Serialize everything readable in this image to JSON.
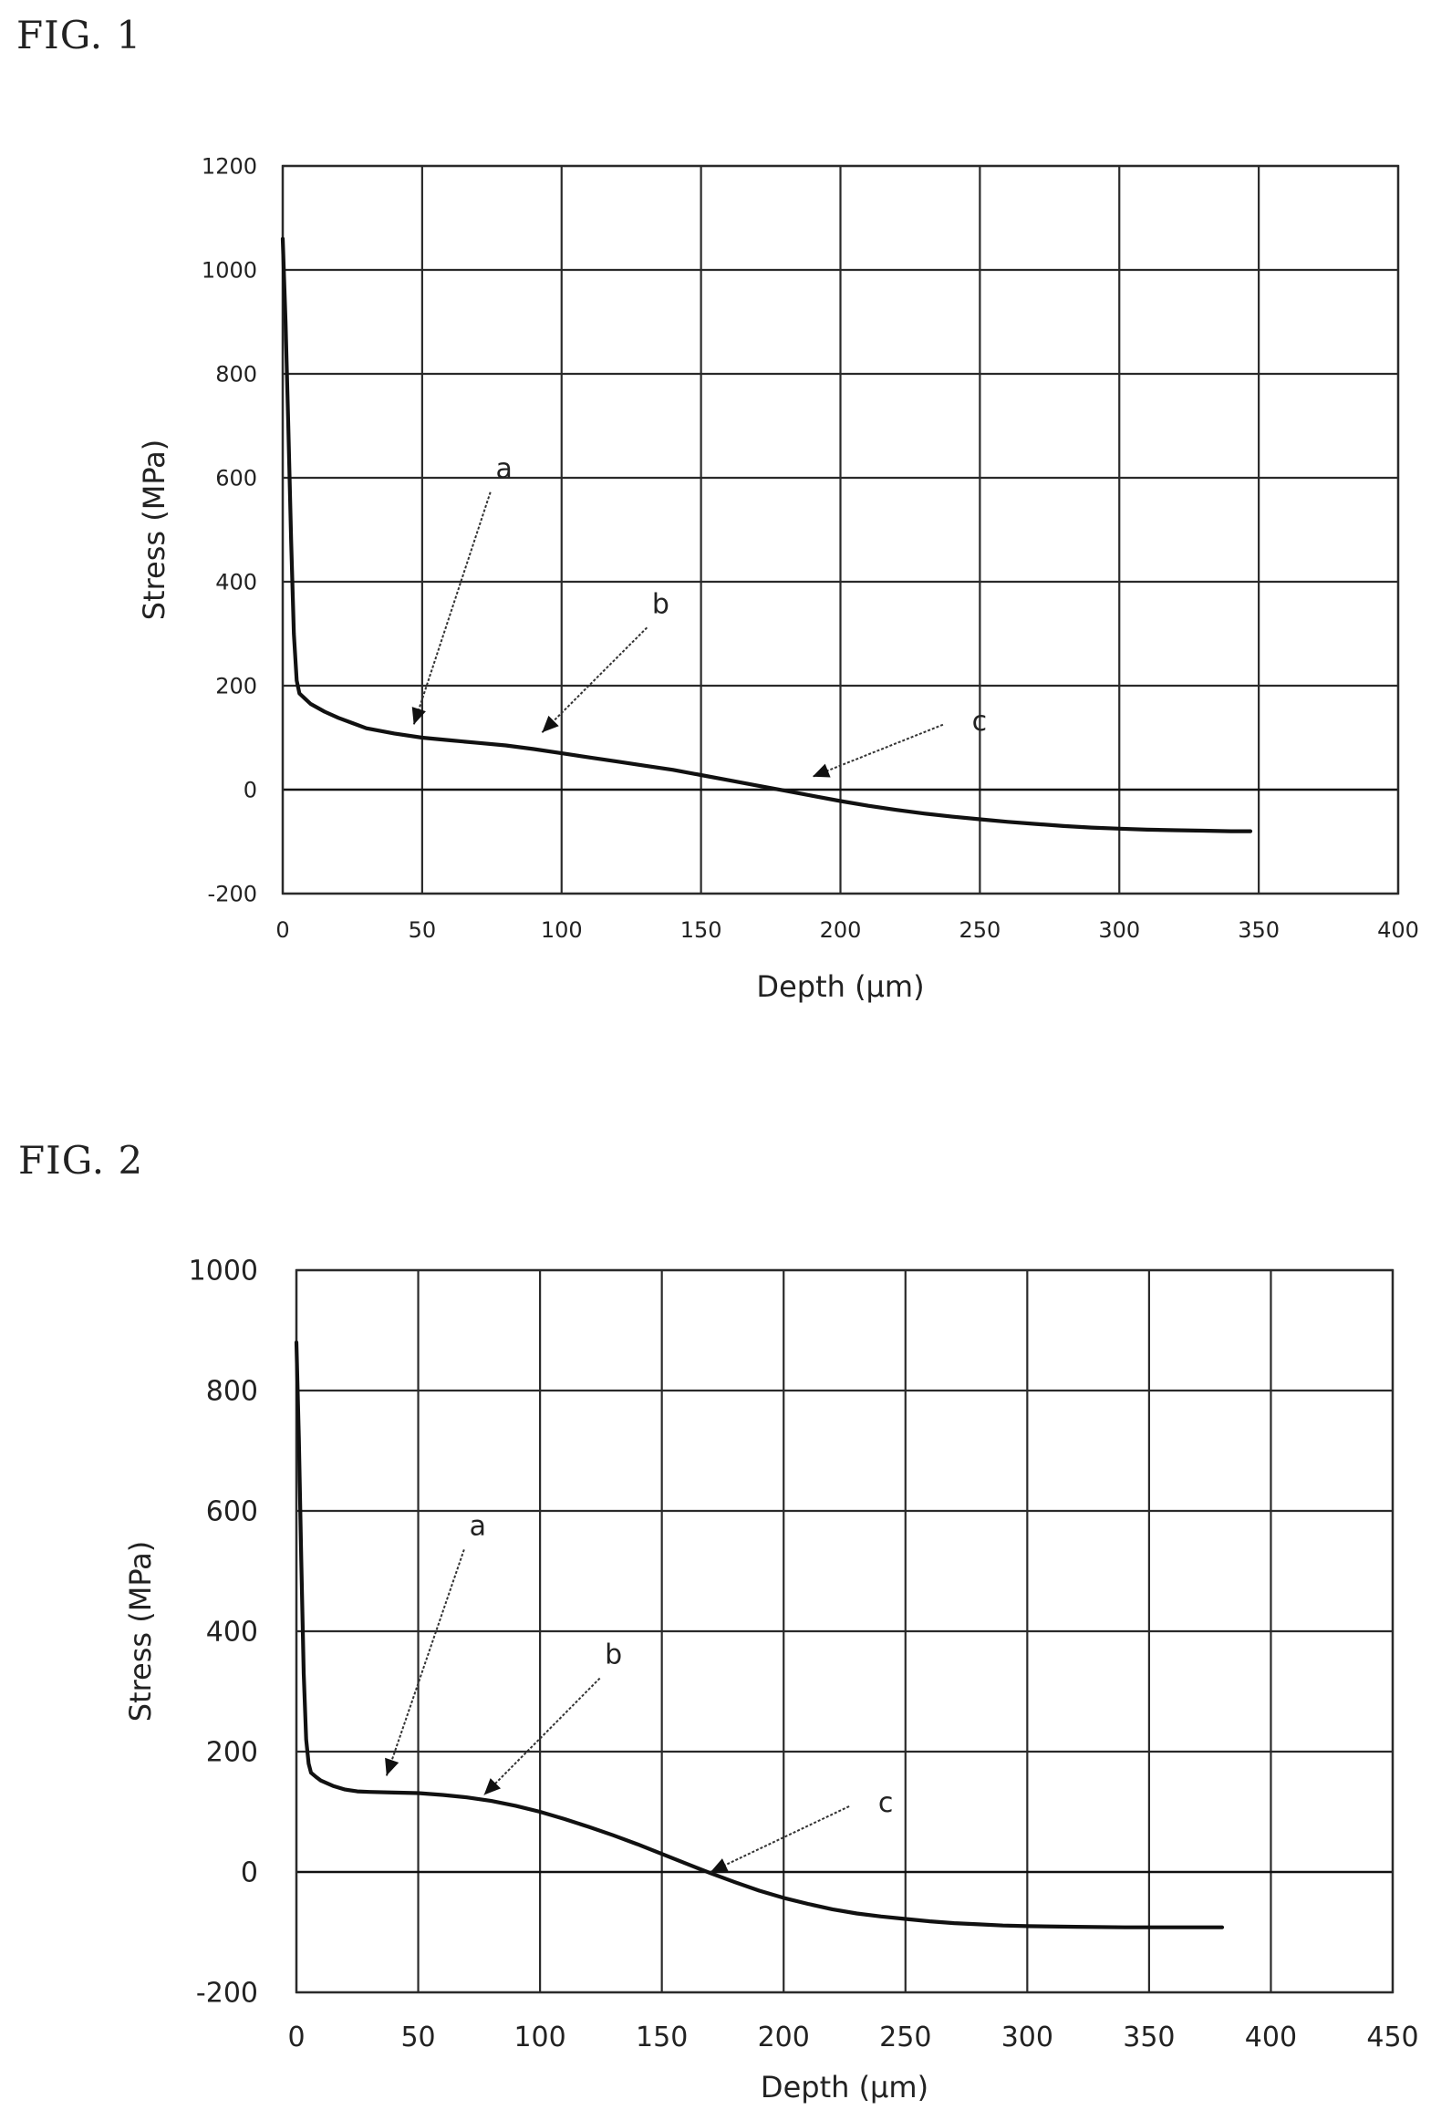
{
  "figures": [
    {
      "label": "FIG. 1"
    },
    {
      "label": "FIG. 2"
    }
  ],
  "chart_data": [
    {
      "type": "line",
      "title": "",
      "xlabel": "Depth (µm)",
      "ylabel": "Stress (MPa)",
      "xlim": [
        0,
        400
      ],
      "ylim": [
        -200,
        1200
      ],
      "xticks": [
        0,
        50,
        100,
        150,
        200,
        250,
        300,
        350,
        400
      ],
      "yticks": [
        -200,
        0,
        200,
        400,
        600,
        800,
        1000,
        1200
      ],
      "grid": true,
      "series": [
        {
          "x": [
            0,
            1,
            2,
            3,
            4,
            5,
            6,
            8,
            10,
            15,
            20,
            25,
            30,
            40,
            50,
            60,
            70,
            80,
            90,
            100,
            110,
            120,
            130,
            140,
            150,
            160,
            170,
            180,
            190,
            200,
            210,
            220,
            230,
            240,
            250,
            260,
            270,
            280,
            290,
            300,
            310,
            320,
            330,
            340,
            347
          ],
          "y": [
            1060,
            900,
            700,
            480,
            300,
            210,
            185,
            175,
            165,
            150,
            138,
            128,
            118,
            108,
            100,
            95,
            90,
            85,
            78,
            70,
            62,
            54,
            46,
            38,
            28,
            18,
            8,
            -2,
            -12,
            -22,
            -31,
            -39,
            -46,
            -52,
            -57,
            -62,
            -66,
            -70,
            -73,
            -75,
            -77,
            -78,
            -79,
            -80,
            -80
          ]
        }
      ],
      "annotations": [
        {
          "text": "a",
          "x": 47,
          "y": 125
        },
        {
          "text": "b",
          "x": 93,
          "y": 110
        },
        {
          "text": "c",
          "x": 190,
          "y": 25
        }
      ]
    },
    {
      "type": "line",
      "title": "",
      "xlabel": "Depth (µm)",
      "ylabel": "Stress (MPa)",
      "xlim": [
        0,
        450
      ],
      "ylim": [
        -200,
        1000
      ],
      "xticks": [
        0,
        50,
        100,
        150,
        200,
        250,
        300,
        350,
        400,
        450
      ],
      "yticks": [
        -200,
        0,
        200,
        400,
        600,
        800,
        1000
      ],
      "grid": true,
      "series": [
        {
          "x": [
            0,
            1,
            2,
            3,
            4,
            5,
            6,
            8,
            10,
            15,
            20,
            25,
            30,
            40,
            50,
            60,
            70,
            80,
            90,
            100,
            110,
            120,
            130,
            140,
            150,
            160,
            170,
            180,
            190,
            200,
            210,
            220,
            230,
            240,
            250,
            260,
            270,
            280,
            290,
            300,
            320,
            340,
            360,
            380
          ],
          "y": [
            880,
            720,
            520,
            330,
            220,
            180,
            165,
            158,
            152,
            143,
            137,
            134,
            133,
            132,
            131,
            128,
            124,
            118,
            110,
            100,
            88,
            75,
            61,
            46,
            30,
            14,
            -2,
            -17,
            -31,
            -43,
            -53,
            -62,
            -69,
            -74,
            -78,
            -82,
            -85,
            -87,
            -89,
            -90,
            -91,
            -92,
            -92,
            -92
          ]
        }
      ],
      "annotations": [
        {
          "text": "a",
          "x": 37,
          "y": 160
        },
        {
          "text": "b",
          "x": 77,
          "y": 128
        },
        {
          "text": "c",
          "x": 170,
          "y": 0
        }
      ]
    }
  ]
}
